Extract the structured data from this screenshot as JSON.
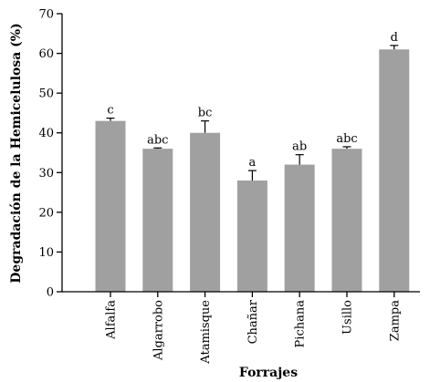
{
  "chart_data": {
    "type": "bar",
    "title": "",
    "xlabel": "Forrajes",
    "ylabel": "Degradación de la Hemicelulosa (%)",
    "ylim": [
      0,
      70
    ],
    "yticks": [
      0,
      10,
      20,
      30,
      40,
      50,
      60,
      70
    ],
    "grid": false,
    "bar_color": "#a0a0a0",
    "categories": [
      "Alfalfa",
      "Algarrobo",
      "Atamisque",
      "Chañar",
      "Pichana",
      "Usillo",
      "Zampa"
    ],
    "values": [
      43,
      36,
      40,
      28,
      32,
      36,
      61
    ],
    "errors": [
      0.7,
      0.2,
      3,
      2.5,
      2.5,
      0.5,
      1
    ],
    "labels": [
      "c",
      "abc",
      "bc",
      "a",
      "ab",
      "abc",
      "d"
    ]
  }
}
